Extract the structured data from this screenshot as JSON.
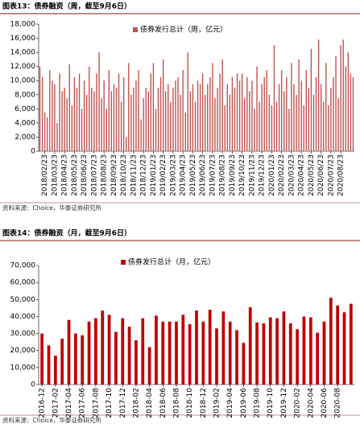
{
  "chart_data": [
    {
      "type": "bar",
      "title": "图表13：债券融资（周，截至9月6日）",
      "source": "资料来源：Choice，华泰证券研究所",
      "categories": [
        null,
        null,
        "2018/02/23",
        null,
        null,
        null,
        "2018/03/23",
        null,
        null,
        null,
        "2018/04/23",
        null,
        null,
        null,
        "2018/05/23",
        null,
        null,
        null,
        "2018/06/23",
        null,
        null,
        null,
        "2018/07/23",
        null,
        null,
        null,
        "2018/08/23",
        null,
        null,
        null,
        "2018/09/23",
        null,
        null,
        null,
        "2018/10/23",
        null,
        null,
        null,
        "2018/11/23",
        null,
        null,
        null,
        "2018/12/23",
        null,
        null,
        null,
        "2019/01/23",
        null,
        null,
        null,
        "2019/02/23",
        null,
        null,
        null,
        "2019/03/23",
        null,
        null,
        null,
        "2019/04/23",
        null,
        null,
        null,
        "2019/05/23",
        null,
        null,
        null,
        "2019/06/23",
        null,
        null,
        null,
        "2019/07/23",
        null,
        null,
        null,
        "2019/08/23",
        null,
        null,
        null,
        "2019/09/23",
        null,
        null,
        null,
        "2019/10/23",
        null,
        null,
        null,
        "2019/11/23",
        null,
        null,
        null,
        "2019/12/23",
        null,
        null,
        null,
        "2020/01/23",
        null,
        null,
        null,
        "2020/02/23",
        null,
        null,
        null,
        "2020/03/23",
        null,
        null,
        null,
        "2020/04/23",
        null,
        null,
        null,
        "2020/05/23",
        null,
        null,
        null,
        "2020/06/23",
        null,
        null,
        null,
        "2020/07/23",
        null,
        null,
        null,
        "2020/08/23",
        null,
        null,
        null,
        null,
        null
      ],
      "series": [
        {
          "name": "债券发行总计（周，亿元）",
          "color": "#c0504d",
          "values": [
            12000,
            10500,
            5500,
            4800,
            11500,
            10000,
            9500,
            4000,
            11000,
            8500,
            9000,
            7500,
            12300,
            6500,
            10500,
            9000,
            11000,
            6000,
            10000,
            8000,
            12000,
            9000,
            8500,
            11000,
            14000,
            7500,
            10000,
            6000,
            11500,
            8500,
            9500,
            9000,
            11000,
            7000,
            10500,
            2000,
            12500,
            8000,
            9000,
            10000,
            11500,
            4500,
            7500,
            9000,
            8500,
            11000,
            12500,
            6000,
            9000,
            10500,
            13000,
            8500,
            9500,
            7000,
            9000,
            10000,
            10500,
            8000,
            11500,
            5500,
            14000,
            8500,
            9500,
            7000,
            10000,
            9500,
            11000,
            8000,
            9500,
            10500,
            12500,
            7500,
            9000,
            11000,
            13000,
            6500,
            9500,
            8000,
            10500,
            9000,
            11000,
            10000,
            11000,
            7500,
            10500,
            8500,
            10000,
            6000,
            12000,
            7000,
            9500,
            10500,
            11500,
            8000,
            6500,
            15000,
            7000,
            9500,
            11500,
            8500,
            10500,
            6000,
            12500,
            9500,
            8000,
            13000,
            10000,
            6500,
            11500,
            9000,
            14500,
            8000,
            10500,
            15800,
            9500,
            7000,
            12500,
            6500,
            9000,
            10500,
            13500,
            7500,
            15000,
            15800,
            12000,
            14000,
            11000,
            10500
          ]
        }
      ],
      "ylim": [
        0,
        18000
      ],
      "yticks": [
        0,
        {
          "value": 2000,
          "label": "2,000"
        },
        {
          "value": 4000,
          "label": "4,000"
        },
        {
          "value": 6000,
          "label": "6,000"
        },
        {
          "value": 8000,
          "label": "8,000"
        },
        {
          "value": 10000,
          "label": "10,000"
        },
        {
          "value": 12000,
          "label": "12,000"
        },
        {
          "value": 14000,
          "label": "14,000"
        },
        {
          "value": 16000,
          "label": "16,000"
        },
        {
          "value": 18000,
          "label": "18,000"
        }
      ]
    },
    {
      "type": "bar",
      "title": "图表14：债券融资（月，截至9月6日）",
      "source": "资料来源：Choice，华泰证券研究所",
      "categories": [
        "2016-12",
        null,
        "2017-02",
        null,
        "2017-04",
        null,
        "2017-06",
        null,
        "2017-08",
        null,
        "2017-10",
        null,
        "2017-12",
        null,
        "2018-02",
        null,
        "2018-04",
        null,
        "2018-06",
        null,
        "2018-08",
        null,
        "2018-10",
        null,
        "2018-12",
        null,
        "2019-02",
        null,
        "2019-04",
        null,
        "2019-06",
        null,
        "2019-08",
        null,
        "2019-10",
        null,
        "2019-12",
        null,
        "2020-02",
        null,
        "2020-04",
        null,
        "2020-06",
        null,
        "2020-08",
        null,
        null
      ],
      "series": [
        {
          "name": "债券发行总计（月，亿元）",
          "color": "#c00000",
          "values": [
            30000,
            23000,
            17000,
            27000,
            38000,
            30000,
            29000,
            37000,
            39000,
            43500,
            41000,
            31000,
            39000,
            34000,
            26000,
            39000,
            22000,
            40500,
            37000,
            37000,
            37000,
            41000,
            35500,
            43500,
            37000,
            44000,
            33000,
            43000,
            37000,
            32000,
            24500,
            45500,
            36500,
            36000,
            39500,
            39000,
            43000,
            36000,
            32500,
            40000,
            39500,
            30500,
            37000,
            51000,
            46500,
            42500,
            47500
          ]
        }
      ],
      "ylim": [
        0,
        70000
      ],
      "yticks": [
        0,
        {
          "value": 10000,
          "label": "10,000"
        },
        {
          "value": 20000,
          "label": "20,000"
        },
        {
          "value": 30000,
          "label": "30,000"
        },
        {
          "value": 40000,
          "label": "40,000"
        },
        {
          "value": 50000,
          "label": "50,000"
        },
        {
          "value": 60000,
          "label": "60,000"
        },
        {
          "value": 70000,
          "label": "70,000"
        }
      ]
    }
  ]
}
